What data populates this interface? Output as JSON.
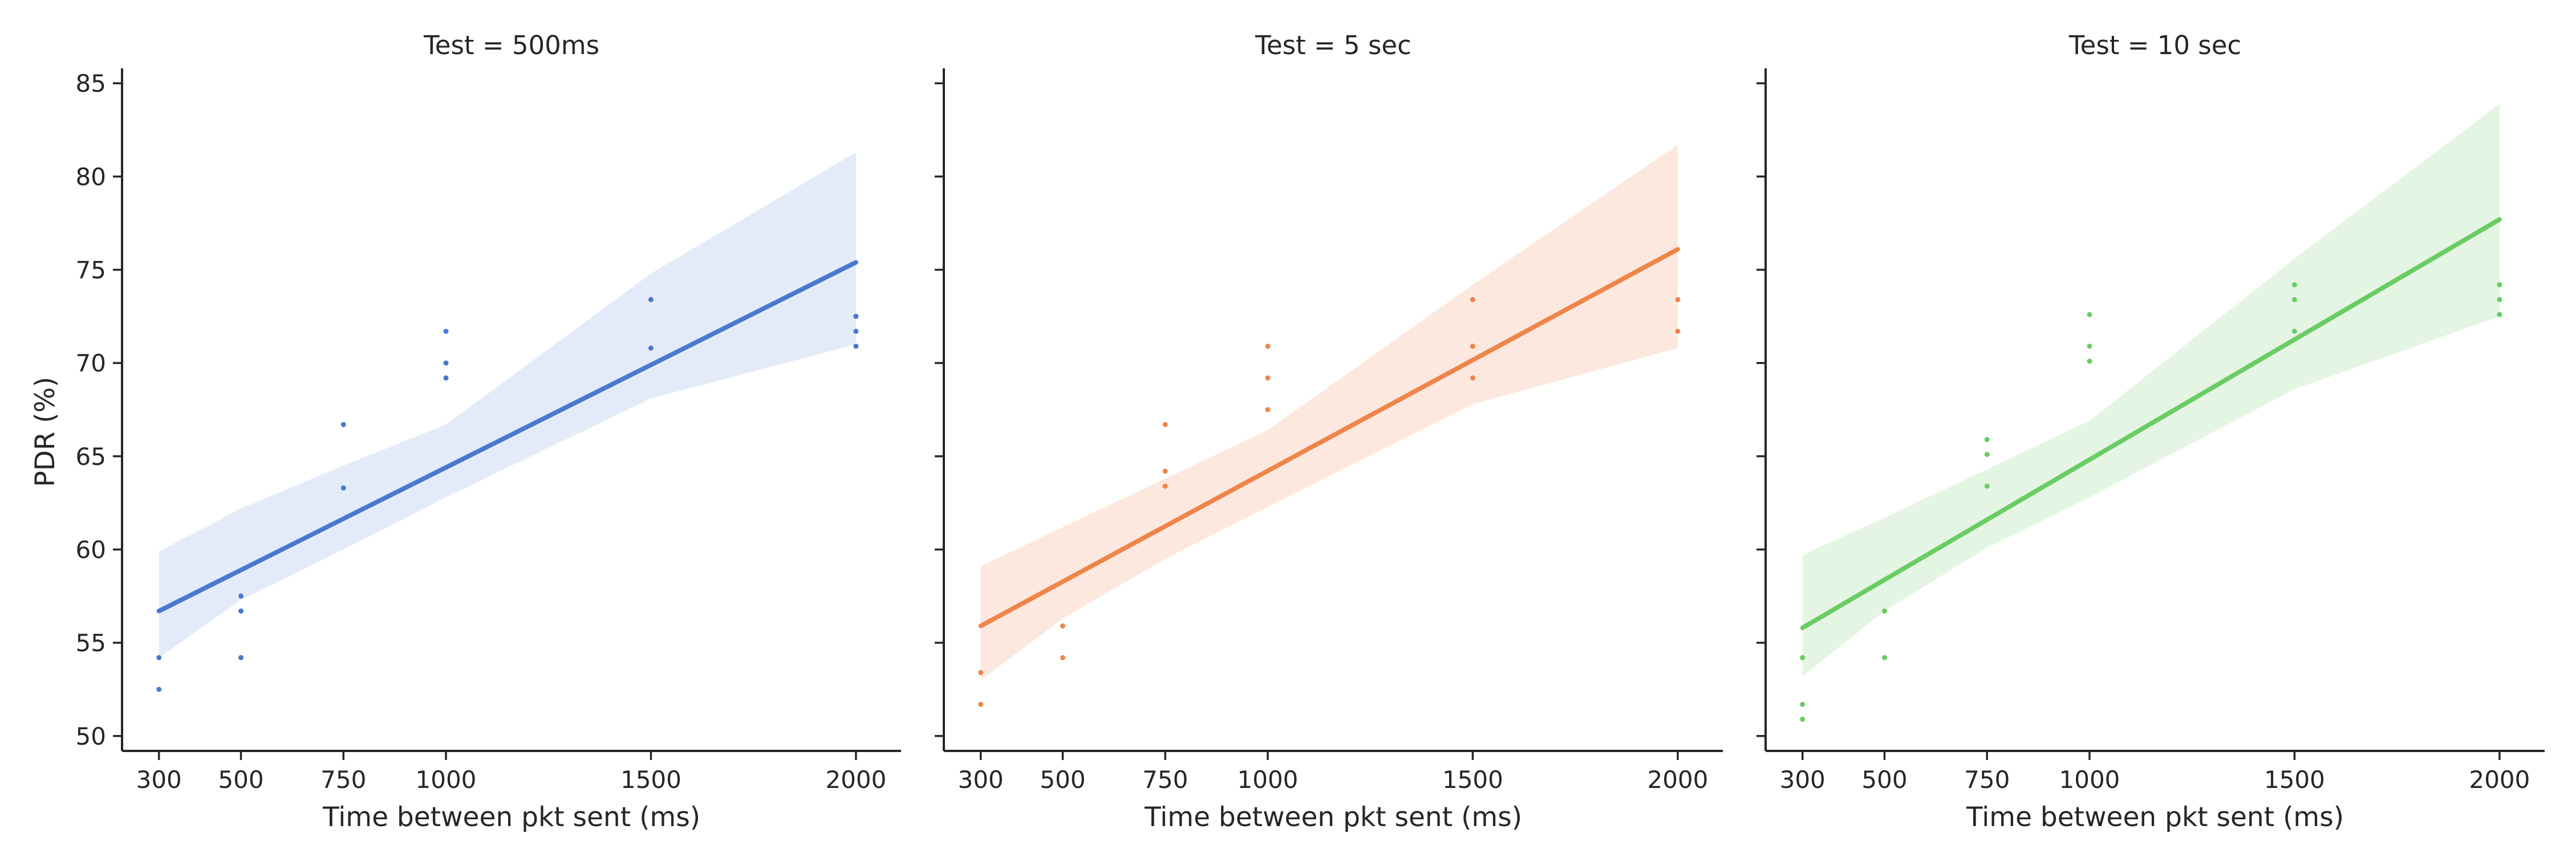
{
  "figure": {
    "ylabel": "PDR (%)",
    "xlabel": "Time between pkt sent (ms)"
  },
  "chart_data": [
    {
      "type": "scatter",
      "title": "Test = 500ms",
      "xlabel": "Time between pkt sent (ms)",
      "ylabel": "PDR (%)",
      "xticks": [
        300,
        500,
        750,
        1000,
        1500,
        2000
      ],
      "yticks": [
        50,
        55,
        60,
        65,
        70,
        75,
        80,
        85
      ],
      "xlim": [
        210,
        2110
      ],
      "ylim": [
        49.2,
        85.8
      ],
      "color": "#4878cf",
      "band_color": "#e4ebf8",
      "points": [
        [
          300,
          54.2
        ],
        [
          300,
          52.5
        ],
        [
          500,
          57.5
        ],
        [
          500,
          56.7
        ],
        [
          500,
          54.2
        ],
        [
          750,
          66.7
        ],
        [
          750,
          63.3
        ],
        [
          1000,
          71.7
        ],
        [
          1000,
          70.0
        ],
        [
          1000,
          69.2
        ],
        [
          1500,
          73.4
        ],
        [
          1500,
          70.8
        ],
        [
          2000,
          72.5
        ],
        [
          2000,
          71.7
        ],
        [
          2000,
          70.9
        ]
      ],
      "regression": {
        "x": [
          300,
          2000
        ],
        "y": [
          56.7,
          75.4
        ]
      },
      "ci_band": {
        "x": [
          300,
          500,
          750,
          1000,
          1500,
          2000
        ],
        "lower": [
          54.2,
          57.3,
          60.0,
          62.8,
          68.1,
          71.0
        ],
        "upper": [
          59.9,
          62.2,
          64.5,
          66.7,
          74.8,
          81.3
        ]
      }
    },
    {
      "type": "scatter",
      "title": "Test = 5 sec",
      "xlabel": "Time between pkt sent (ms)",
      "ylabel": "",
      "xticks": [
        300,
        500,
        750,
        1000,
        1500,
        2000
      ],
      "yticks": [
        50,
        55,
        60,
        65,
        70,
        75,
        80,
        85
      ],
      "xlim": [
        210,
        2110
      ],
      "ylim": [
        49.2,
        85.8
      ],
      "color": "#ee854a",
      "band_color": "#fce8de",
      "points": [
        [
          300,
          53.4
        ],
        [
          300,
          51.7
        ],
        [
          500,
          55.9
        ],
        [
          500,
          54.2
        ],
        [
          750,
          66.7
        ],
        [
          750,
          64.2
        ],
        [
          750,
          63.4
        ],
        [
          1000,
          70.9
        ],
        [
          1000,
          69.2
        ],
        [
          1000,
          67.5
        ],
        [
          1500,
          73.4
        ],
        [
          1500,
          70.9
        ],
        [
          1500,
          69.2
        ],
        [
          2000,
          73.4
        ],
        [
          2000,
          71.7
        ]
      ],
      "regression": {
        "x": [
          300,
          2000
        ],
        "y": [
          55.9,
          76.1
        ]
      },
      "ci_band": {
        "x": [
          300,
          500,
          750,
          1000,
          1500,
          2000
        ],
        "lower": [
          53.0,
          56.3,
          59.5,
          62.3,
          67.8,
          70.8
        ],
        "upper": [
          59.1,
          61.2,
          63.8,
          66.4,
          74.2,
          81.7
        ]
      }
    },
    {
      "type": "scatter",
      "title": "Test = 10 sec",
      "xlabel": "Time between pkt sent (ms)",
      "ylabel": "",
      "xticks": [
        300,
        500,
        750,
        1000,
        1500,
        2000
      ],
      "yticks": [
        50,
        55,
        60,
        65,
        70,
        75,
        80,
        85
      ],
      "xlim": [
        210,
        2110
      ],
      "ylim": [
        49.2,
        85.8
      ],
      "color": "#6acc64",
      "band_color": "#e5f5e3",
      "points": [
        [
          300,
          54.2
        ],
        [
          300,
          51.7
        ],
        [
          300,
          50.9
        ],
        [
          500,
          56.7
        ],
        [
          500,
          54.2
        ],
        [
          750,
          65.9
        ],
        [
          750,
          65.1
        ],
        [
          750,
          63.4
        ],
        [
          1000,
          72.6
        ],
        [
          1000,
          70.9
        ],
        [
          1000,
          70.1
        ],
        [
          1500,
          74.2
        ],
        [
          1500,
          73.4
        ],
        [
          1500,
          71.7
        ],
        [
          2000,
          74.2
        ],
        [
          2000,
          73.4
        ],
        [
          2000,
          72.6
        ]
      ],
      "regression": {
        "x": [
          300,
          2000
        ],
        "y": [
          55.8,
          77.7
        ]
      },
      "ci_band": {
        "x": [
          300,
          500,
          750,
          1000,
          1500,
          2000
        ],
        "lower": [
          53.2,
          56.7,
          60.1,
          62.8,
          68.6,
          72.5
        ],
        "upper": [
          59.7,
          61.7,
          64.3,
          66.9,
          75.6,
          83.9
        ]
      }
    }
  ]
}
